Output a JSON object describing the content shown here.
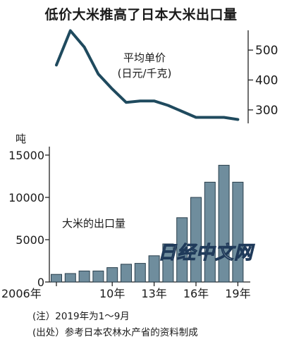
{
  "title": "低价大米推高了日本大米出口量",
  "chart_data": [
    {
      "type": "line",
      "label_lines": [
        "平均单价",
        "(日元/千克)"
      ],
      "x": [
        2006,
        2007,
        2008,
        2009,
        2010,
        2011,
        2012,
        2013,
        2014,
        2015,
        2016,
        2017,
        2018,
        2019
      ],
      "values": [
        450,
        565,
        510,
        420,
        370,
        325,
        330,
        330,
        315,
        295,
        275,
        275,
        275,
        268
      ],
      "y_ticks": [
        300,
        400,
        500
      ],
      "ylim": [
        255,
        585
      ],
      "color": "#1f4a5e"
    },
    {
      "type": "bar",
      "unit_label": "吨",
      "series_label": "大米的出口量",
      "x": [
        2006,
        2007,
        2008,
        2009,
        2010,
        2011,
        2012,
        2013,
        2014,
        2015,
        2016,
        2017,
        2018,
        2019
      ],
      "values": [
        900,
        1000,
        1300,
        1300,
        1700,
        2100,
        2200,
        3100,
        4500,
        7600,
        10000,
        11800,
        13800,
        11800
      ],
      "y_ticks": [
        0,
        5000,
        10000,
        15000
      ],
      "ylim": [
        0,
        16000
      ],
      "x_tick_labels": [
        {
          "year": 2006,
          "text": "2006年"
        },
        {
          "year": 2010,
          "text": "10年"
        },
        {
          "year": 2013,
          "text": "13年"
        },
        {
          "year": 2016,
          "text": "16年"
        },
        {
          "year": 2019,
          "text": "19年"
        }
      ],
      "bar_color": "#6f8d9d",
      "bar_edge": "#2a3f4d"
    }
  ],
  "notes": {
    "note": "(注）2019年为1～9月",
    "source": "(出处）参考日本农林水产省的资料制成"
  },
  "watermark": "日经中文网"
}
